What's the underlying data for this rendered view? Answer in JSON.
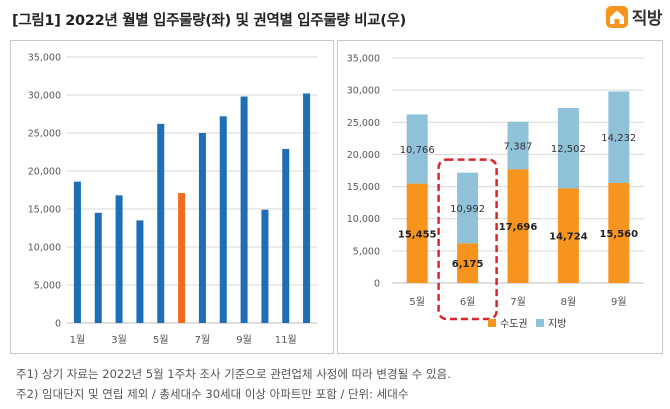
{
  "title": "[그림1] 2022년 월별 입주물량(좌) 및 권역별 입주물량 비교(우)",
  "logo": {
    "text": "직방",
    "icon": "house-icon"
  },
  "notes": [
    "주1) 상기 자료는 2022년 5월 1주차 조사 기준으로 관련업체 사정에 따라 변경될 수 있음.",
    "주2) 임대단지 및 연립 제외 / 총세대수 30세대 이상 아파트만 포함 / 단위: 세대수"
  ],
  "colors": {
    "bar_blue": "#1e6db7",
    "highlight_orange": "#f26b1d",
    "metro": "#f7941d",
    "local": "#8fc1d9",
    "highlight_box": "#d9262c",
    "grid": "#d9d9d9"
  },
  "chart_data": [
    {
      "type": "bar",
      "categories": [
        "1월",
        "2월",
        "3월",
        "4월",
        "5월",
        "6월",
        "7월",
        "8월",
        "9월",
        "10월",
        "11월",
        "12월"
      ],
      "tick_labels": [
        "1월",
        "3월",
        "5월",
        "7월",
        "9월",
        "11월"
      ],
      "values": [
        18600,
        14500,
        16800,
        13500,
        26200,
        17100,
        25000,
        27200,
        29800,
        14900,
        22900,
        30200
      ],
      "highlight_index": 5,
      "yticks": [
        "0",
        "5,000",
        "10,000",
        "15,000",
        "20,000",
        "25,000",
        "30,000",
        "35,000"
      ],
      "ylim": [
        0,
        35000
      ],
      "grid": true
    },
    {
      "type": "bar",
      "stacked": true,
      "categories": [
        "5월",
        "6월",
        "7월",
        "8월",
        "9월"
      ],
      "series": [
        {
          "name": "수도권",
          "values": [
            15455,
            6175,
            17696,
            14724,
            15560
          ],
          "labels": [
            "15,455",
            "6,175",
            "17,696",
            "14,724",
            "15,560"
          ]
        },
        {
          "name": "지방",
          "values": [
            10766,
            10992,
            7387,
            12502,
            14232
          ],
          "labels": [
            "10,766",
            "10,992",
            "7,387",
            "12,502",
            "14,232"
          ]
        }
      ],
      "highlight_index": 1,
      "yticks": [
        "0",
        "5,000",
        "10,000",
        "15,000",
        "20,000",
        "25,000",
        "30,000",
        "35,000"
      ],
      "ylim": [
        0,
        35000
      ],
      "grid": true,
      "legend_position": "bottom-right"
    }
  ]
}
